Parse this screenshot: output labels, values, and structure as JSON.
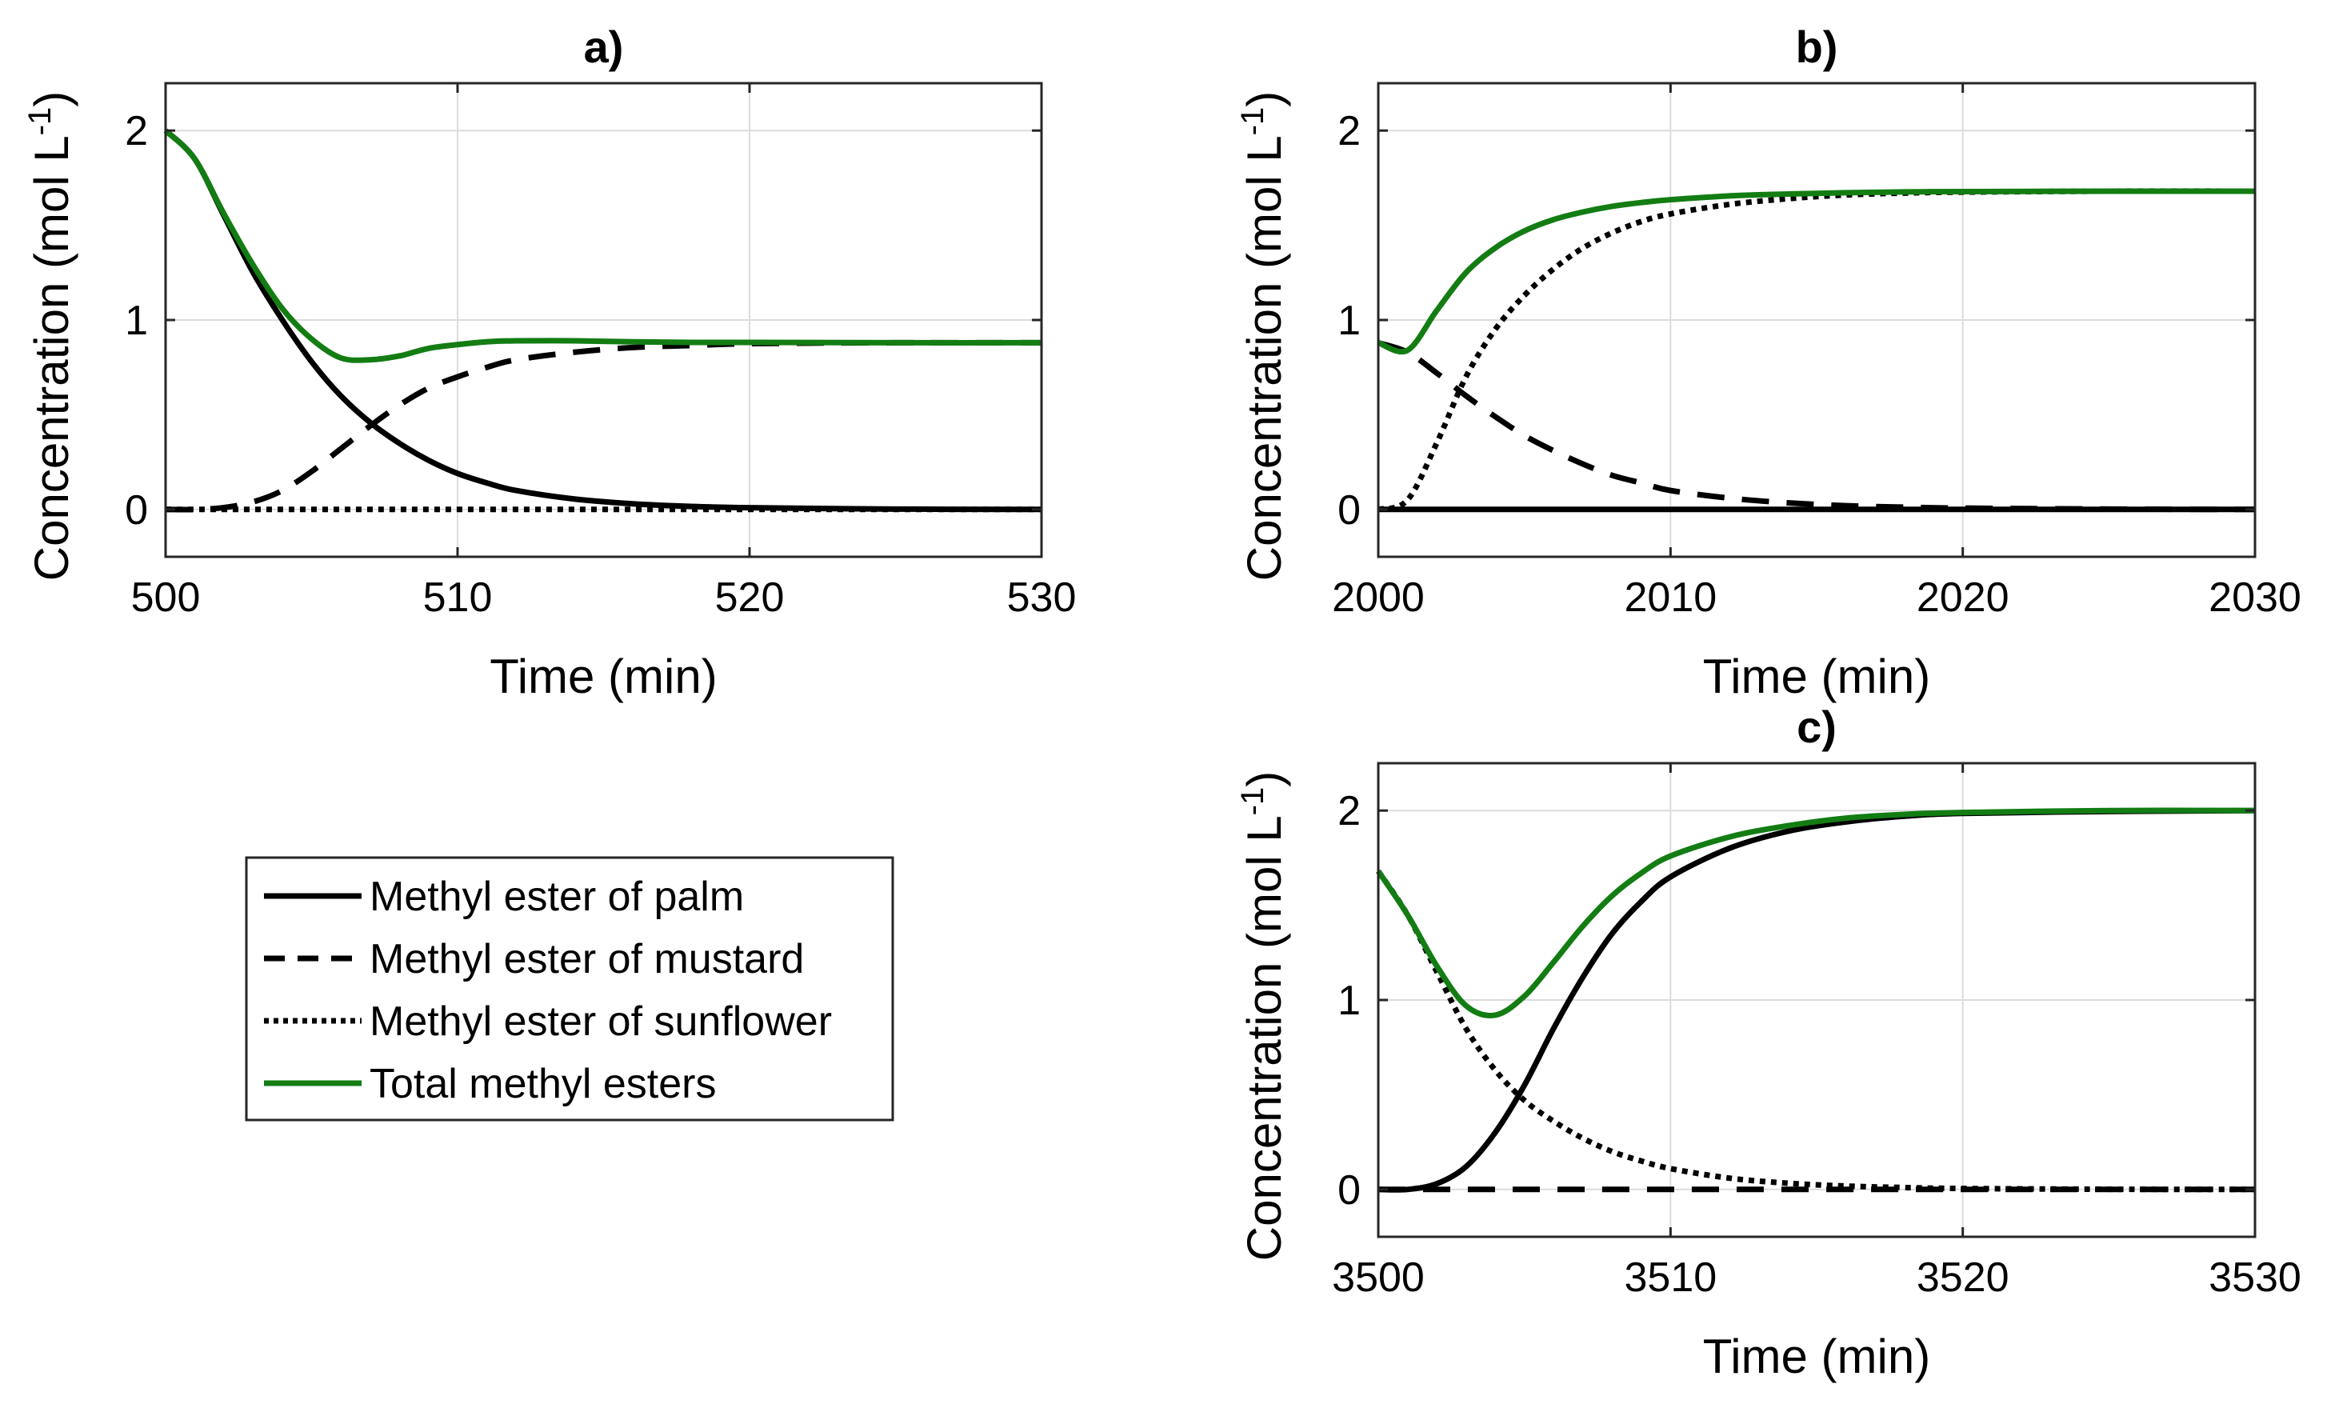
{
  "figure": {
    "legend": {
      "entries": [
        {
          "label": "Methyl ester of palm",
          "style": "solid",
          "color": "#000000"
        },
        {
          "label": "Methyl ester of mustard",
          "style": "dashed",
          "color": "#000000"
        },
        {
          "label": "Methyl ester of sunflower",
          "style": "dotted",
          "color": "#000000"
        },
        {
          "label": "Total methyl esters",
          "style": "solid",
          "color": "#137d13"
        }
      ]
    }
  },
  "chart_data": [
    {
      "type": "line",
      "title": "a)",
      "xlabel": "Time (min)",
      "ylabel": "Concentration (mol L",
      "ylabel_sup": "-1",
      "ylabel_close": ")",
      "xlim": [
        500,
        530
      ],
      "ylim": [
        -0.25,
        2.25
      ],
      "xticks": [
        500,
        510,
        520,
        530
      ],
      "yticks": [
        0,
        1,
        2
      ],
      "grid": true,
      "series": [
        {
          "name": "Methyl ester of palm",
          "style": "solid",
          "color": "#000000",
          "x": [
            500,
            501,
            502,
            503,
            504,
            505,
            506,
            507,
            508,
            509,
            510,
            511,
            512,
            514,
            516,
            518,
            520,
            525,
            530
          ],
          "y": [
            2.0,
            1.85,
            1.55,
            1.25,
            1.0,
            0.78,
            0.6,
            0.46,
            0.35,
            0.26,
            0.19,
            0.14,
            0.1,
            0.055,
            0.03,
            0.016,
            0.009,
            0.002,
            0.0
          ]
        },
        {
          "name": "Methyl ester of mustard",
          "style": "dashed",
          "color": "#000000",
          "x": [
            500,
            501,
            502,
            503,
            504,
            505,
            506,
            507,
            508,
            509,
            510,
            511,
            512,
            514,
            516,
            518,
            520,
            525,
            530
          ],
          "y": [
            0.0,
            0.0,
            0.01,
            0.04,
            0.1,
            0.2,
            0.32,
            0.44,
            0.55,
            0.64,
            0.7,
            0.75,
            0.79,
            0.83,
            0.855,
            0.865,
            0.875,
            0.88,
            0.88
          ]
        },
        {
          "name": "Methyl ester of sunflower",
          "style": "dotted",
          "color": "#000000",
          "x": [
            500,
            530
          ],
          "y": [
            0.0,
            0.0
          ]
        },
        {
          "name": "Total methyl esters",
          "style": "solid",
          "color": "#137d13",
          "x": [
            500,
            501,
            502,
            503,
            504,
            505,
            506,
            507,
            508,
            509,
            510,
            511,
            512,
            514,
            516,
            518,
            520,
            525,
            530
          ],
          "y": [
            2.0,
            1.85,
            1.56,
            1.29,
            1.06,
            0.9,
            0.8,
            0.79,
            0.81,
            0.85,
            0.87,
            0.885,
            0.89,
            0.89,
            0.885,
            0.882,
            0.882,
            0.88,
            0.88
          ]
        }
      ]
    },
    {
      "type": "line",
      "title": "b)",
      "xlabel": "Time (min)",
      "ylabel": "Concentration (mol L",
      "ylabel_sup": "-1",
      "ylabel_close": ")",
      "xlim": [
        2000,
        2030
      ],
      "ylim": [
        -0.25,
        2.25
      ],
      "xticks": [
        2000,
        2010,
        2020,
        2030
      ],
      "yticks": [
        0,
        1,
        2
      ],
      "grid": true,
      "series": [
        {
          "name": "Methyl ester of palm",
          "style": "solid",
          "color": "#000000",
          "x": [
            2000,
            2030
          ],
          "y": [
            0.0,
            0.0
          ]
        },
        {
          "name": "Methyl ester of mustard",
          "style": "dashed",
          "color": "#000000",
          "x": [
            2000,
            2001,
            2002,
            2003,
            2004,
            2005,
            2006,
            2007,
            2008,
            2009,
            2010,
            2012,
            2014,
            2016,
            2018,
            2020,
            2025,
            2030
          ],
          "y": [
            0.88,
            0.83,
            0.72,
            0.6,
            0.49,
            0.39,
            0.31,
            0.24,
            0.18,
            0.14,
            0.1,
            0.06,
            0.035,
            0.02,
            0.012,
            0.007,
            0.002,
            0.0
          ]
        },
        {
          "name": "Methyl ester of sunflower",
          "style": "dotted",
          "color": "#000000",
          "x": [
            2000,
            2001,
            2002,
            2003,
            2004,
            2005,
            2006,
            2007,
            2008,
            2009,
            2010,
            2012,
            2014,
            2016,
            2018,
            2020,
            2025,
            2030
          ],
          "y": [
            0.0,
            0.05,
            0.35,
            0.7,
            0.95,
            1.13,
            1.27,
            1.38,
            1.46,
            1.52,
            1.56,
            1.61,
            1.64,
            1.66,
            1.67,
            1.675,
            1.68,
            1.68
          ]
        },
        {
          "name": "Total methyl esters",
          "style": "solid",
          "color": "#137d13",
          "x": [
            2000,
            2001,
            2002,
            2003,
            2004,
            2005,
            2006,
            2007,
            2008,
            2009,
            2010,
            2012,
            2014,
            2016,
            2018,
            2020,
            2025,
            2030
          ],
          "y": [
            0.88,
            0.84,
            1.05,
            1.25,
            1.38,
            1.47,
            1.53,
            1.57,
            1.6,
            1.62,
            1.635,
            1.655,
            1.665,
            1.672,
            1.676,
            1.678,
            1.68,
            1.68
          ]
        }
      ]
    },
    {
      "type": "line",
      "title": "c)",
      "xlabel": "Time (min)",
      "ylabel": "Concentration (mol L",
      "ylabel_sup": "-1",
      "ylabel_close": ")",
      "xlim": [
        3500,
        3530
      ],
      "ylim": [
        -0.25,
        2.25
      ],
      "xticks": [
        3500,
        3510,
        3520,
        3530
      ],
      "yticks": [
        0,
        1,
        2
      ],
      "grid": true,
      "series": [
        {
          "name": "Methyl ester of palm",
          "style": "solid",
          "color": "#000000",
          "x": [
            3500,
            3501,
            3502,
            3503,
            3504,
            3505,
            3506,
            3507,
            3508,
            3509,
            3510,
            3512,
            3514,
            3516,
            3518,
            3520,
            3525,
            3530
          ],
          "y": [
            0.0,
            0.0,
            0.03,
            0.12,
            0.3,
            0.55,
            0.85,
            1.12,
            1.35,
            1.52,
            1.65,
            1.8,
            1.89,
            1.94,
            1.97,
            1.985,
            1.995,
            2.0
          ]
        },
        {
          "name": "Methyl ester of mustard",
          "style": "dashed",
          "color": "#000000",
          "x": [
            3500,
            3530
          ],
          "y": [
            0.0,
            0.0
          ]
        },
        {
          "name": "Methyl ester of sunflower",
          "style": "dotted",
          "color": "#000000",
          "x": [
            3500,
            3501,
            3502,
            3503,
            3504,
            3505,
            3506,
            3507,
            3508,
            3509,
            3510,
            3512,
            3514,
            3516,
            3518,
            3520,
            3525,
            3530
          ],
          "y": [
            1.68,
            1.45,
            1.15,
            0.85,
            0.63,
            0.47,
            0.36,
            0.27,
            0.2,
            0.15,
            0.11,
            0.06,
            0.033,
            0.018,
            0.01,
            0.005,
            0.001,
            0.0
          ]
        },
        {
          "name": "Total methyl esters",
          "style": "solid",
          "color": "#137d13",
          "x": [
            3500,
            3501,
            3502,
            3503,
            3504,
            3505,
            3506,
            3507,
            3508,
            3509,
            3510,
            3512,
            3514,
            3516,
            3518,
            3520,
            3525,
            3530
          ],
          "y": [
            1.68,
            1.45,
            1.18,
            0.97,
            0.92,
            1.02,
            1.2,
            1.39,
            1.55,
            1.67,
            1.76,
            1.86,
            1.92,
            1.96,
            1.98,
            1.99,
            2.0,
            2.0
          ]
        }
      ]
    }
  ]
}
